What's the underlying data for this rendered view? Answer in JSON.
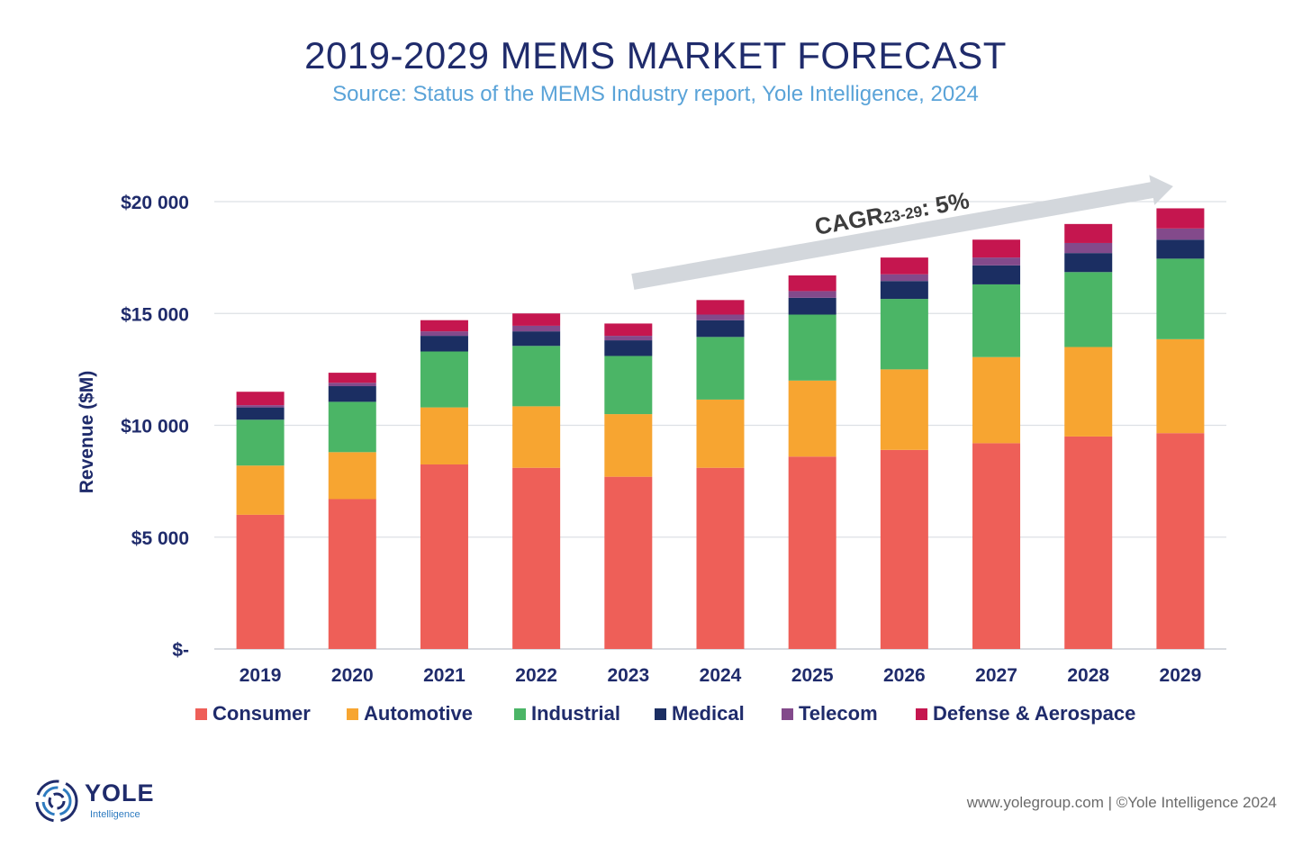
{
  "header": {
    "title": "2019-2029 MEMS MARKET FORECAST",
    "subtitle": "Source: Status of the MEMS Industry report, Yole Intelligence, 2024"
  },
  "chart_data": {
    "type": "bar",
    "stacked": true,
    "categories": [
      "2019",
      "2020",
      "2021",
      "2022",
      "2023",
      "2024",
      "2025",
      "2026",
      "2027",
      "2028",
      "2029"
    ],
    "series": [
      {
        "name": "Consumer",
        "color": "#ee5f58",
        "values": [
          6000,
          6700,
          8250,
          8100,
          7700,
          8100,
          8600,
          8900,
          9200,
          9500,
          9650
        ]
      },
      {
        "name": "Automotive",
        "color": "#f7a531",
        "values": [
          2200,
          2100,
          2550,
          2750,
          2800,
          3050,
          3400,
          3600,
          3850,
          4000,
          4200
        ]
      },
      {
        "name": "Industrial",
        "color": "#4bb566",
        "values": [
          2050,
          2250,
          2500,
          2700,
          2600,
          2800,
          2950,
          3150,
          3250,
          3350,
          3600
        ]
      },
      {
        "name": "Medical",
        "color": "#1b2e62",
        "values": [
          550,
          700,
          700,
          650,
          700,
          750,
          750,
          800,
          850,
          850,
          850
        ]
      },
      {
        "name": "Telecom",
        "color": "#834a8b",
        "values": [
          100,
          150,
          200,
          250,
          200,
          250,
          300,
          300,
          350,
          450,
          500
        ]
      },
      {
        "name": "Defense & Aerospace",
        "color": "#c5164f",
        "values": [
          600,
          450,
          500,
          550,
          550,
          650,
          700,
          750,
          800,
          850,
          900
        ]
      }
    ],
    "ylabel": "Revenue ($M)",
    "xlabel": "",
    "ylim": [
      0,
      20000
    ],
    "yticks": [
      0,
      5000,
      10000,
      15000,
      20000
    ],
    "ytick_labels": [
      "$-",
      "$5 000",
      "$10 000",
      "$15 000",
      "$20 000"
    ],
    "grid": true,
    "legend_position": "bottom",
    "annotation": {
      "text_main": "CAGR",
      "text_sub": "23-29",
      "text_value": ": 5%",
      "from_category": "2023",
      "to_category": "2029",
      "color": "#d3d7dc"
    }
  },
  "footer": {
    "credit": "www.yolegroup.com | ©Yole Intelligence 2024",
    "logo_word": "YOLE",
    "logo_sub": "Intelligence"
  }
}
